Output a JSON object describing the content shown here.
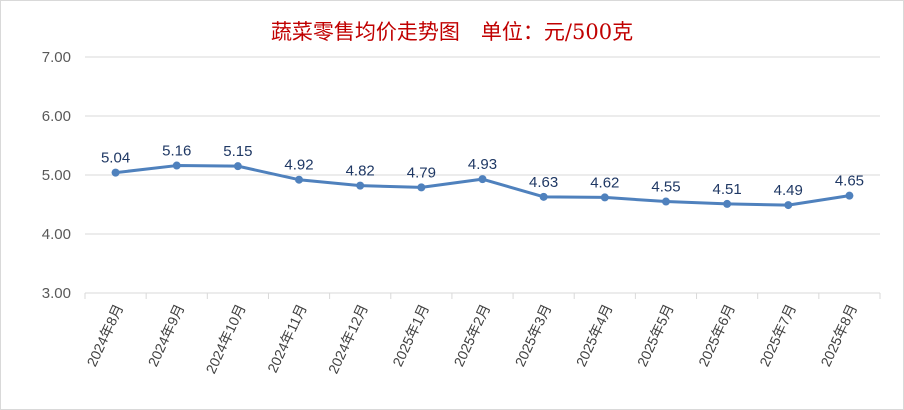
{
  "chart_data": {
    "type": "line",
    "title": "蔬菜零售均价走势图　单位：元/500克",
    "xlabel": "",
    "ylabel": "",
    "categories": [
      "2024年8月",
      "2024年9月",
      "2024年10月",
      "2024年11月",
      "2024年12月",
      "2025年1月",
      "2025年2月",
      "2025年3月",
      "2025年4月",
      "2025年5月",
      "2025年6月",
      "2025年7月",
      "2025年8月"
    ],
    "values": [
      5.04,
      5.16,
      5.15,
      4.92,
      4.82,
      4.79,
      4.93,
      4.63,
      4.62,
      4.55,
      4.51,
      4.49,
      4.65
    ],
    "data_labels": [
      "5.04",
      "5.16",
      "5.15",
      "4.92",
      "4.82",
      "4.79",
      "4.93",
      "4.63",
      "4.62",
      "4.55",
      "4.51",
      "4.49",
      "4.65"
    ],
    "ylim": [
      3,
      7
    ],
    "yticks": [
      "3.00",
      "4.00",
      "5.00",
      "6.00",
      "7.00"
    ],
    "grid": true,
    "legend": "none",
    "colors": {
      "line": "#4f81bd",
      "title": "#c00000",
      "grid": "#d9d9d9",
      "data_label": "#1f3864"
    }
  }
}
